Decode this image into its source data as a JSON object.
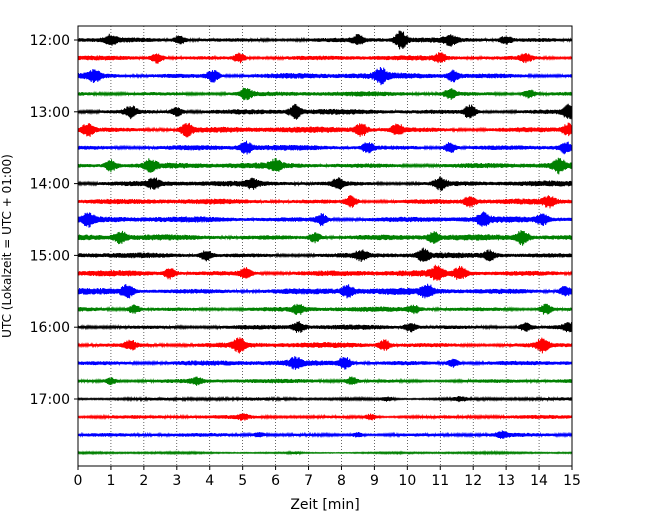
{
  "chart_data": {
    "type": "seismogram-helicorder",
    "xlabel": "Zeit  [min]",
    "ylabel": "UTC (Lokalzeit = UTC + 01:00)",
    "xlim": [
      0,
      15
    ],
    "x_ticks": [
      "0",
      "1",
      "2",
      "3",
      "4",
      "5",
      "6",
      "7",
      "8",
      "9",
      "10",
      "11",
      "12",
      "13",
      "14",
      "15"
    ],
    "y_tick_labels": [
      "12:00",
      "13:00",
      "14:00",
      "15:00",
      "16:00",
      "17:00"
    ],
    "grid": "vertical dotted at each minute",
    "series_colors": [
      "#000000",
      "#ff0000",
      "#0000ff",
      "#008000"
    ],
    "traces": [
      {
        "start": "12:00",
        "color": "#000000",
        "amplitude": 0.8,
        "bursts": [
          [
            9.8,
            3.0
          ],
          [
            1.0,
            1.6
          ],
          [
            8.5,
            1.5
          ],
          [
            3.1,
            1.4
          ],
          [
            11.3,
            1.6
          ],
          [
            13.0,
            1.4
          ]
        ]
      },
      {
        "start": "12:15",
        "color": "#ff0000",
        "amplitude": 0.8,
        "bursts": [
          [
            2.4,
            1.8
          ],
          [
            4.9,
            1.6
          ],
          [
            11.0,
            1.5
          ],
          [
            13.6,
            1.4
          ]
        ]
      },
      {
        "start": "12:30",
        "color": "#0000ff",
        "amplitude": 1.0,
        "bursts": [
          [
            0.5,
            1.5
          ],
          [
            4.1,
            1.6
          ],
          [
            9.2,
            1.8
          ],
          [
            11.4,
            1.5
          ]
        ]
      },
      {
        "start": "12:45",
        "color": "#008000",
        "amplitude": 0.8,
        "bursts": [
          [
            5.1,
            2.0
          ],
          [
            11.3,
            1.6
          ],
          [
            13.7,
            1.5
          ]
        ]
      },
      {
        "start": "13:00",
        "color": "#000000",
        "amplitude": 0.9,
        "bursts": [
          [
            1.6,
            1.8
          ],
          [
            6.6,
            2.0
          ],
          [
            11.9,
            2.2
          ],
          [
            14.9,
            2.0
          ],
          [
            3.0,
            1.4
          ]
        ]
      },
      {
        "start": "13:15",
        "color": "#ff0000",
        "amplitude": 1.0,
        "bursts": [
          [
            0.3,
            1.8
          ],
          [
            3.3,
            1.8
          ],
          [
            8.6,
            1.8
          ],
          [
            9.7,
            1.5
          ],
          [
            14.9,
            1.6
          ]
        ]
      },
      {
        "start": "13:30",
        "color": "#0000ff",
        "amplitude": 0.9,
        "bursts": [
          [
            5.1,
            1.7
          ],
          [
            8.8,
            1.6
          ],
          [
            11.3,
            1.7
          ],
          [
            14.8,
            1.6
          ]
        ]
      },
      {
        "start": "13:45",
        "color": "#008000",
        "amplitude": 1.0,
        "bursts": [
          [
            1.0,
            1.6
          ],
          [
            2.2,
            1.5
          ],
          [
            6.0,
            1.4
          ],
          [
            14.6,
            1.7
          ]
        ]
      },
      {
        "start": "14:00",
        "color": "#000000",
        "amplitude": 0.9,
        "bursts": [
          [
            2.3,
            1.4
          ],
          [
            7.9,
            1.6
          ],
          [
            11.0,
            1.8
          ],
          [
            5.3,
            1.3
          ]
        ]
      },
      {
        "start": "14:15",
        "color": "#ff0000",
        "amplitude": 0.9,
        "bursts": [
          [
            8.3,
            1.7
          ],
          [
            11.9,
            1.5
          ],
          [
            14.3,
            1.5
          ]
        ]
      },
      {
        "start": "14:30",
        "color": "#0000ff",
        "amplitude": 1.0,
        "bursts": [
          [
            0.3,
            1.6
          ],
          [
            7.4,
            1.5
          ],
          [
            12.3,
            1.5
          ],
          [
            14.1,
            1.4
          ]
        ]
      },
      {
        "start": "14:45",
        "color": "#008000",
        "amplitude": 1.0,
        "bursts": [
          [
            1.3,
            1.6
          ],
          [
            7.2,
            1.4
          ],
          [
            10.8,
            1.3
          ],
          [
            13.5,
            1.9
          ]
        ]
      },
      {
        "start": "15:00",
        "color": "#000000",
        "amplitude": 0.9,
        "bursts": [
          [
            3.9,
            1.6
          ],
          [
            10.5,
            1.9
          ],
          [
            12.5,
            1.4
          ],
          [
            8.6,
            1.4
          ]
        ]
      },
      {
        "start": "15:15",
        "color": "#ff0000",
        "amplitude": 1.0,
        "bursts": [
          [
            2.8,
            1.5
          ],
          [
            10.9,
            1.7
          ],
          [
            11.6,
            1.6
          ],
          [
            5.1,
            1.4
          ]
        ]
      },
      {
        "start": "15:30",
        "color": "#0000ff",
        "amplitude": 1.1,
        "bursts": [
          [
            1.5,
            1.6
          ],
          [
            8.2,
            1.4
          ],
          [
            10.6,
            1.6
          ],
          [
            14.8,
            1.3
          ]
        ]
      },
      {
        "start": "15:45",
        "color": "#008000",
        "amplitude": 0.8,
        "bursts": [
          [
            1.7,
            1.4
          ],
          [
            6.7,
            1.6
          ],
          [
            14.2,
            1.9
          ],
          [
            10.2,
            1.3
          ]
        ]
      },
      {
        "start": "16:00",
        "color": "#000000",
        "amplitude": 0.8,
        "bursts": [
          [
            6.7,
            1.7
          ],
          [
            10.1,
            1.5
          ],
          [
            13.6,
            1.6
          ],
          [
            14.9,
            1.4
          ]
        ]
      },
      {
        "start": "16:15",
        "color": "#ff0000",
        "amplitude": 0.9,
        "bursts": [
          [
            4.9,
            1.9
          ],
          [
            9.3,
            1.5
          ],
          [
            14.1,
            1.9
          ],
          [
            1.6,
            1.3
          ]
        ]
      },
      {
        "start": "16:30",
        "color": "#0000ff",
        "amplitude": 0.9,
        "bursts": [
          [
            8.1,
            1.8
          ],
          [
            6.6,
            1.4
          ],
          [
            11.4,
            1.2
          ]
        ]
      },
      {
        "start": "16:45",
        "color": "#008000",
        "amplitude": 0.7,
        "bursts": [
          [
            8.3,
            1.5
          ],
          [
            1.0,
            1.3
          ],
          [
            3.6,
            1.3
          ]
        ]
      },
      {
        "start": "17:00",
        "color": "#000000",
        "amplitude": 0.5,
        "bursts": [
          [
            9.4,
            1.2
          ],
          [
            11.6,
            1.1
          ]
        ]
      },
      {
        "start": "17:15",
        "color": "#ff0000",
        "amplitude": 0.6,
        "bursts": [
          [
            8.9,
            1.4
          ],
          [
            5.0,
            1.1
          ]
        ]
      },
      {
        "start": "17:30",
        "color": "#0000ff",
        "amplitude": 0.6,
        "bursts": [
          [
            12.9,
            1.3
          ],
          [
            5.5,
            1.1
          ],
          [
            8.5,
            1.1
          ]
        ]
      },
      {
        "start": "17:45",
        "color": "#008000",
        "amplitude": 0.3,
        "bursts": [
          [
            6.6,
            1.0
          ]
        ]
      }
    ]
  }
}
